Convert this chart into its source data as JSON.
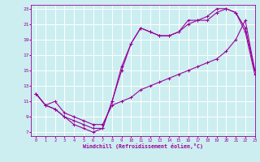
{
  "xlabel": "Windchill (Refroidissement éolien,°C)",
  "xlim": [
    -0.5,
    23
  ],
  "ylim": [
    6.5,
    23.5
  ],
  "yticks": [
    7,
    9,
    11,
    13,
    15,
    17,
    19,
    21,
    23
  ],
  "xticks": [
    0,
    1,
    2,
    3,
    4,
    5,
    6,
    7,
    8,
    9,
    10,
    11,
    12,
    13,
    14,
    15,
    16,
    17,
    18,
    19,
    20,
    21,
    22,
    23
  ],
  "bg_color": "#cceef0",
  "grid_color": "#ffffff",
  "line_color": "#990099",
  "line1_x": [
    0,
    1,
    2,
    3,
    4,
    5,
    6,
    7,
    8,
    9,
    10,
    11,
    12,
    13,
    14,
    15,
    16,
    17,
    18,
    19,
    20,
    21,
    22,
    23
  ],
  "line1_y": [
    12.0,
    10.5,
    10.0,
    9.0,
    8.0,
    7.5,
    7.0,
    7.5,
    11.0,
    15.0,
    18.5,
    20.5,
    20.0,
    19.5,
    19.5,
    20.0,
    21.0,
    21.5,
    21.5,
    22.5,
    23.0,
    22.5,
    20.0,
    14.5
  ],
  "line2_x": [
    0,
    1,
    2,
    3,
    4,
    5,
    6,
    7,
    8,
    9,
    10,
    11,
    12,
    13,
    14,
    15,
    16,
    17,
    18,
    19,
    20,
    21,
    22,
    23
  ],
  "line2_y": [
    12.0,
    10.5,
    10.0,
    9.0,
    8.5,
    8.0,
    7.5,
    7.5,
    11.0,
    15.5,
    18.5,
    20.5,
    20.0,
    19.5,
    19.5,
    20.0,
    21.5,
    21.5,
    22.0,
    23.0,
    23.0,
    22.5,
    20.5,
    15.0
  ],
  "line3_x": [
    0,
    1,
    2,
    3,
    4,
    5,
    6,
    7,
    8,
    9,
    10,
    11,
    12,
    13,
    14,
    15,
    16,
    17,
    18,
    19,
    20,
    21,
    22,
    23
  ],
  "line3_y": [
    12.0,
    10.5,
    11.0,
    9.5,
    9.0,
    8.5,
    8.0,
    8.0,
    10.5,
    11.0,
    11.5,
    12.5,
    13.0,
    13.5,
    14.0,
    14.5,
    15.0,
    15.5,
    16.0,
    16.5,
    17.5,
    19.0,
    21.5,
    15.0
  ]
}
